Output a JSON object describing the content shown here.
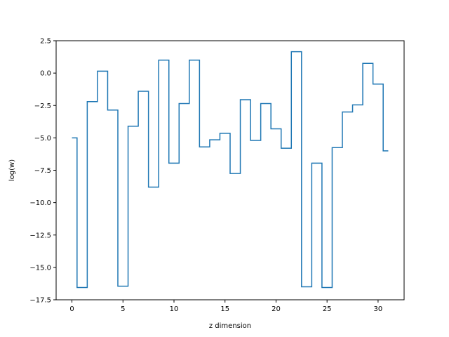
{
  "chart_data": {
    "type": "line",
    "drawstyle": "steps-mid",
    "xlabel": "z dimension",
    "ylabel": "log(w)",
    "xlim": [
      -1.55,
      32.55
    ],
    "ylim": [
      -17.5,
      2.5
    ],
    "xticks": [
      0,
      5,
      10,
      15,
      20,
      25,
      30
    ],
    "yticks": [
      2.5,
      0.0,
      -2.5,
      -5.0,
      -7.5,
      -10.0,
      -12.5,
      -15.0,
      -17.5
    ],
    "ytick_labels": [
      "2.5",
      "0.0",
      "−2.5",
      "−5.0",
      "−7.5",
      "−10.0",
      "−12.5",
      "−15.0",
      "−17.5"
    ],
    "grid": false,
    "line_color": "#1f77b4",
    "series": [
      {
        "x": [
          0,
          1,
          2,
          3,
          4,
          5,
          6,
          7,
          8,
          9,
          10,
          11,
          12,
          13,
          14,
          15,
          16,
          17,
          18,
          19,
          20,
          21,
          22,
          23,
          24,
          25,
          26,
          27,
          28,
          29,
          30,
          31
        ],
        "values": [
          -5.0,
          -16.55,
          -2.2,
          0.15,
          -2.85,
          -16.45,
          -4.1,
          -1.4,
          -8.8,
          1.0,
          -6.95,
          -2.35,
          1.0,
          -5.7,
          -5.15,
          -4.65,
          -7.75,
          -2.05,
          -5.2,
          -2.35,
          -4.3,
          -5.8,
          1.65,
          -16.5,
          -6.95,
          -16.55,
          -5.75,
          -3.0,
          -2.45,
          0.75,
          -0.85,
          -6.0
        ]
      }
    ]
  }
}
